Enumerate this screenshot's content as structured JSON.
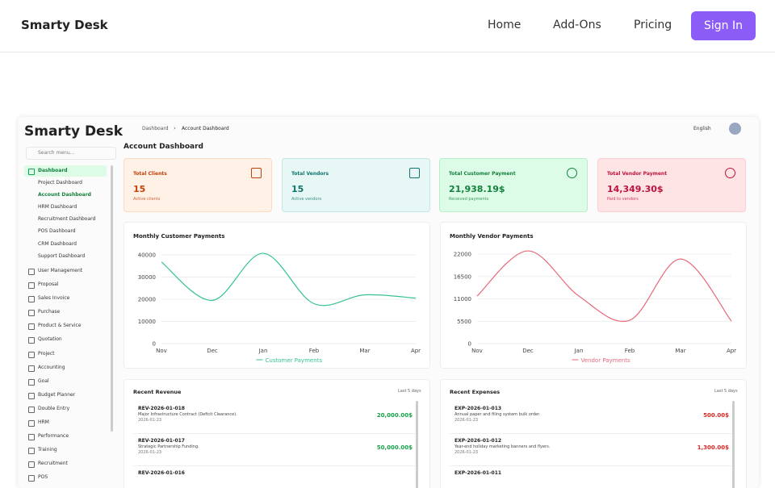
{
  "header": {
    "logo": "Smarty Desk",
    "nav": [
      "Home",
      "Add-Ons",
      "Pricing"
    ],
    "sign_in": "Sign In"
  },
  "dashboard": {
    "logo": "Smarty Desk",
    "search": "Search menu...",
    "breadcrumb": [
      "Dashboard",
      "Account Dashboard"
    ],
    "language": "English",
    "page_title": "Account Dashboard",
    "sidebar": [
      {
        "label": "Dashboard",
        "children": [
          "Project Dashboard",
          "Account Dashboard",
          "HRM Dashboard",
          "Recruitment Dashboard",
          "POS Dashboard",
          "CRM Dashboard",
          "Support Dashboard"
        ]
      },
      {
        "label": "User Management"
      },
      {
        "label": "Proposal"
      },
      {
        "label": "Sales Invoice"
      },
      {
        "label": "Purchase"
      },
      {
        "label": "Product & Service"
      },
      {
        "label": "Quotation"
      },
      {
        "label": "Project"
      },
      {
        "label": "Accounting"
      },
      {
        "label": "Goal"
      },
      {
        "label": "Budget Planner"
      },
      {
        "label": "Double Entry"
      },
      {
        "label": "HRM"
      },
      {
        "label": "Performance"
      },
      {
        "label": "Training"
      },
      {
        "label": "Recruitment"
      },
      {
        "label": "POS"
      }
    ],
    "cards": [
      {
        "title": "Total Clients",
        "value": "15",
        "note": "Active clients"
      },
      {
        "title": "Total Vendors",
        "value": "15",
        "note": "Active vendors"
      },
      {
        "title": "Total Customer Payment",
        "value": "21,938.19$",
        "note": "Received payments"
      },
      {
        "title": "Total Vendor Payment",
        "value": "14,349.30$",
        "note": "Paid to vendors"
      }
    ],
    "lists": [
      {
        "title": "Recent Revenue",
        "period": "Last 5 days",
        "items": [
          {
            "id": "REV-2026-01-018",
            "desc": "Major Infrastructure Contract (Deficit Clearance).",
            "date": "2026-01-23",
            "amount": "20,000.00$"
          },
          {
            "id": "REV-2026-01-017",
            "desc": "Strategic Partnership Funding.",
            "date": "2026-01-23",
            "amount": "50,000.00$"
          },
          {
            "id": "REV-2026-01-016"
          }
        ]
      },
      {
        "title": "Recent Expenses",
        "period": "Last 5 days",
        "items": [
          {
            "id": "EXP-2026-01-013",
            "desc": "Annual paper and filing system bulk order.",
            "date": "2026-01-23",
            "amount": "500.00$"
          },
          {
            "id": "EXP-2026-01-012",
            "desc": "Year-end holiday marketing banners and flyers.",
            "date": "2026-01-23",
            "amount": "1,300.00$"
          },
          {
            "id": "EXP-2026-01-011"
          }
        ]
      }
    ]
  },
  "chart_data": [
    {
      "type": "line",
      "title": "Monthly Customer Payments",
      "categories": [
        "Nov",
        "Dec",
        "Jan",
        "Feb",
        "Mar",
        "Apr"
      ],
      "series": [
        {
          "name": "Customer Payments",
          "color": "#34c38f",
          "values": [
            36800,
            19500,
            40700,
            18000,
            22000,
            20500
          ]
        }
      ],
      "ylim": [
        0,
        44000
      ],
      "yticks": [
        0,
        10000,
        20000,
        30000,
        40000
      ],
      "grid": true
    },
    {
      "type": "line",
      "title": "Monthly Vendor Payments",
      "categories": [
        "Nov",
        "Dec",
        "Jan",
        "Feb",
        "Mar",
        "Apr"
      ],
      "series": [
        {
          "name": "Vendor Payments",
          "color": "#e8697a",
          "values": [
            11700,
            22800,
            11700,
            5750,
            20800,
            5550
          ]
        }
      ],
      "ylim": [
        0,
        24000
      ],
      "yticks": [
        0,
        5500,
        11000,
        16500,
        22000
      ],
      "grid": true
    }
  ]
}
